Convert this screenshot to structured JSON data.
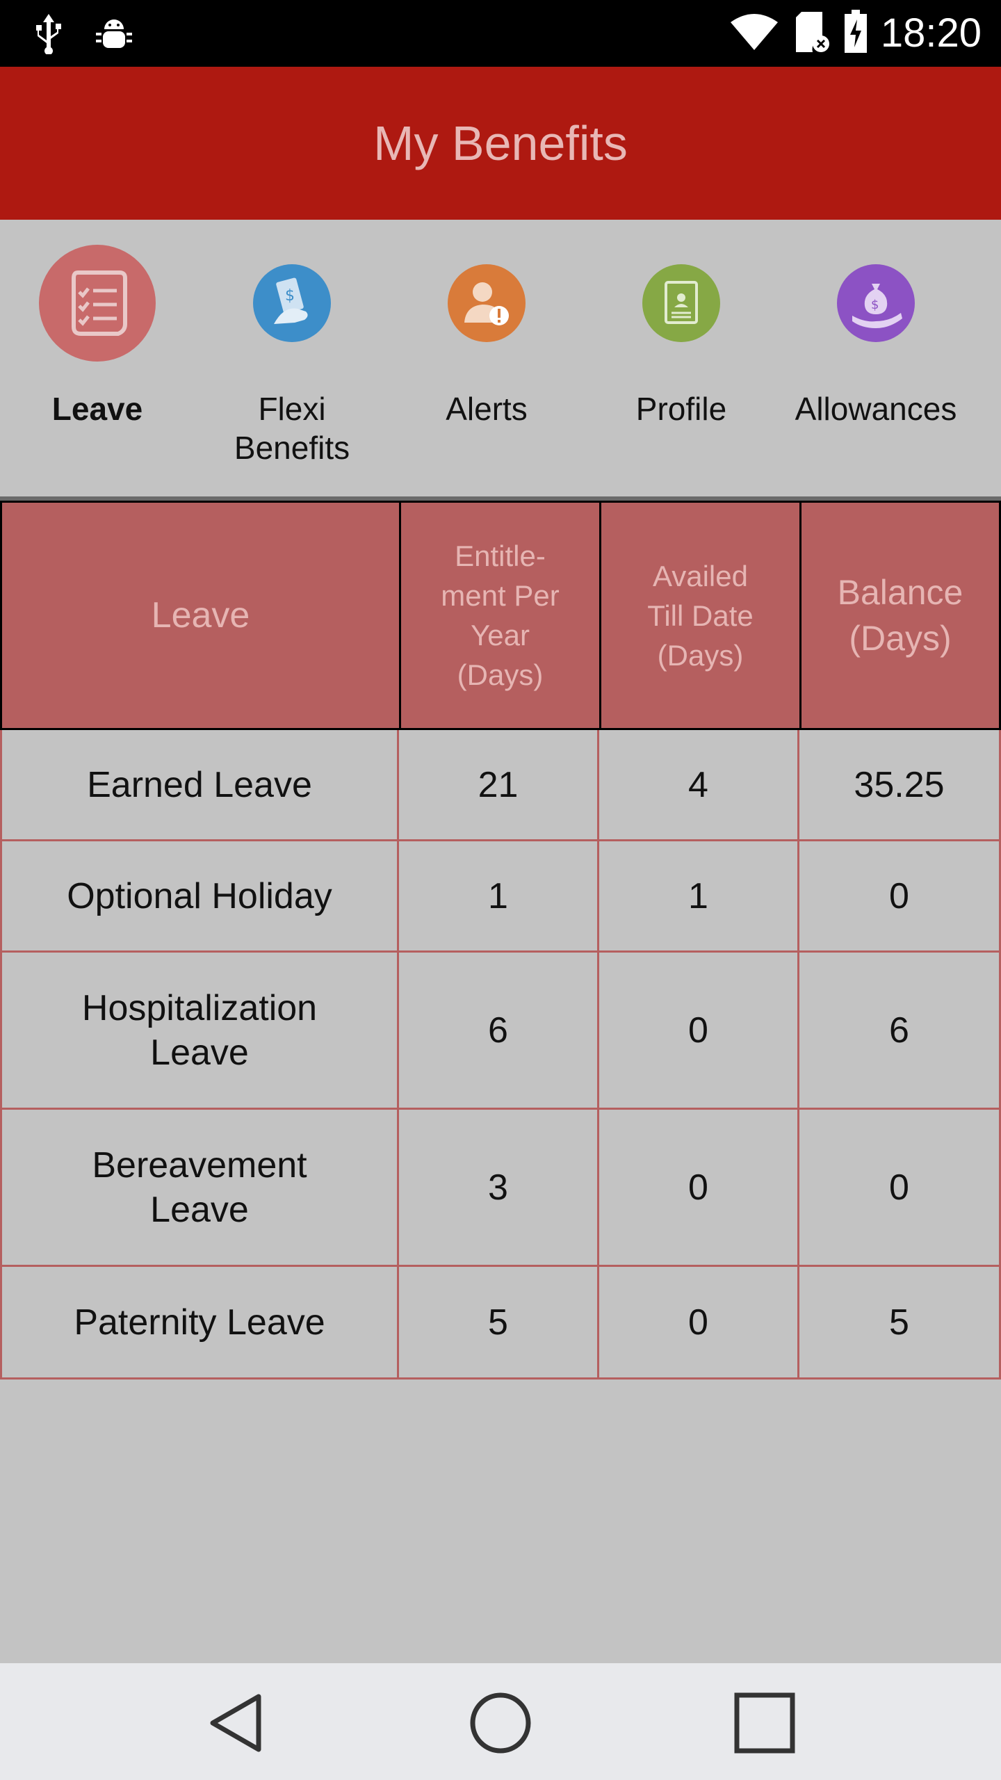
{
  "status_bar": {
    "time": "18:20",
    "icons": [
      "usb-icon",
      "android-debug-icon",
      "wifi-icon",
      "sd-card-icon",
      "battery-charging-icon"
    ]
  },
  "app_bar": {
    "title": "My Benefits"
  },
  "categories": [
    {
      "label": "Leave",
      "icon": "checklist-icon",
      "color": "#c86a6a",
      "active": true
    },
    {
      "label": "Flexi Benefits",
      "icon": "money-hand-icon",
      "color": "#3d8ec9",
      "active": false
    },
    {
      "label": "Alerts",
      "icon": "person-alert-icon",
      "color": "#d97b3a",
      "active": false
    },
    {
      "label": "Profile",
      "icon": "profile-card-icon",
      "color": "#86a845",
      "active": false
    },
    {
      "label": "Allowances",
      "icon": "money-bag-hand-icon",
      "color": "#8c52c4",
      "active": false
    }
  ],
  "table": {
    "headers": [
      "Leave",
      "Entitle-\nment Per\nYear\n(Days)",
      "Availed\nTill Date\n(Days)",
      "Balance\n(Days)"
    ],
    "rows": [
      [
        "Earned Leave",
        "21",
        "4",
        "35.25"
      ],
      [
        "Optional Holiday",
        "1",
        "1",
        "0"
      ],
      [
        "Hospitalization Leave",
        "6",
        "0",
        "6"
      ],
      [
        "Bereavement Leave",
        "3",
        "0",
        "0"
      ],
      [
        "Paternity Leave",
        "5",
        "0",
        "5"
      ]
    ]
  },
  "colors": {
    "app_bar": "#ae1911",
    "header_bg": "#b55f5f",
    "page_bg": "#c3c3c3"
  },
  "nav_bar": {
    "icons": [
      "back-icon",
      "home-icon",
      "recents-icon"
    ]
  }
}
